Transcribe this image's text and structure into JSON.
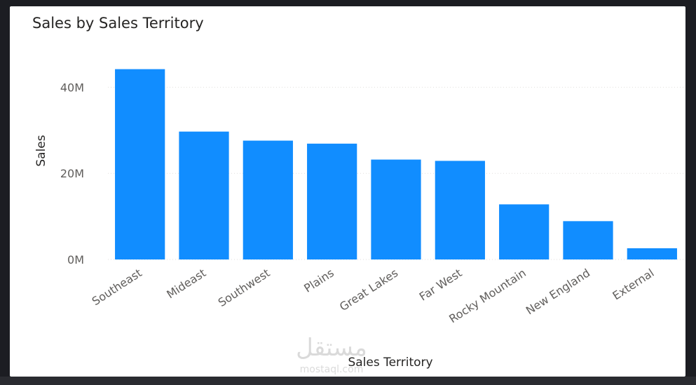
{
  "chart_data": {
    "type": "bar",
    "title": "Sales by Sales Territory",
    "xlabel": "Sales Territory",
    "ylabel": "Sales",
    "categories": [
      "Southeast",
      "Mideast",
      "Southwest",
      "Plains",
      "Great Lakes",
      "Far West",
      "Rocky Mountain",
      "New England",
      "External"
    ],
    "values": [
      44.2,
      29.7,
      27.6,
      26.9,
      23.2,
      22.9,
      12.8,
      8.9,
      2.6
    ],
    "unit": "M",
    "ylim": [
      0,
      50
    ],
    "yticks": [
      0,
      20,
      40
    ],
    "ytick_labels": [
      "0M",
      "20M",
      "40M"
    ],
    "grid": true,
    "legend": "none",
    "bar_color": "#118dff",
    "gridline_color": "#e1dfdd"
  },
  "watermark": {
    "arabic": "مستقل",
    "latin": "mostaql.com"
  }
}
